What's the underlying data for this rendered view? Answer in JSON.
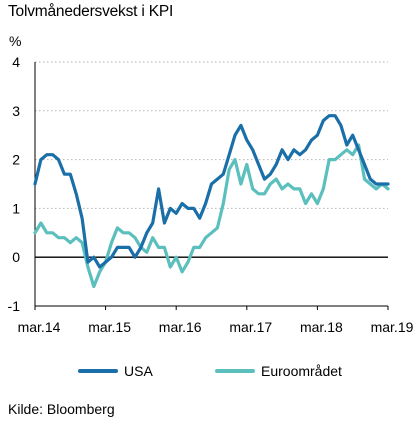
{
  "title": "Tolvmånedersvekst i KPI",
  "source": "Kilde: Bloomberg",
  "chart_data": {
    "type": "line",
    "title": "Tolvmånedersvekst i KPI",
    "ylabel": "%",
    "ylim": [
      -1,
      4
    ],
    "yticks": [
      -1,
      0,
      1,
      2,
      3,
      4
    ],
    "xlim": [
      0,
      60
    ],
    "x_ticks": [
      {
        "label": "mar.14",
        "x": 0
      },
      {
        "label": "mar.15",
        "x": 12
      },
      {
        "label": "mar.16",
        "x": 24
      },
      {
        "label": "mar.17",
        "x": 36
      },
      {
        "label": "mar.18",
        "x": 48
      },
      {
        "label": "mar.19",
        "x": 60
      }
    ],
    "legend": "bottom",
    "series": [
      {
        "name": "USA",
        "color": "#1a6fa8",
        "values": [
          1.5,
          2.0,
          2.1,
          2.1,
          2.0,
          1.7,
          1.7,
          1.3,
          0.8,
          -0.1,
          0.0,
          -0.2,
          -0.1,
          0.0,
          0.2,
          0.2,
          0.2,
          0.0,
          0.2,
          0.5,
          0.7,
          1.4,
          0.7,
          1.0,
          0.9,
          1.1,
          1.0,
          1.0,
          0.8,
          1.1,
          1.5,
          1.6,
          1.7,
          2.1,
          2.5,
          2.7,
          2.4,
          2.2,
          1.9,
          1.6,
          1.7,
          1.9,
          2.2,
          2.0,
          2.2,
          2.1,
          2.2,
          2.4,
          2.5,
          2.8,
          2.9,
          2.9,
          2.7,
          2.3,
          2.5,
          2.2,
          1.9,
          1.6,
          1.5,
          1.5,
          1.5
        ]
      },
      {
        "name": "Euroområdet",
        "color": "#5bbfbd",
        "values": [
          0.5,
          0.7,
          0.5,
          0.5,
          0.4,
          0.4,
          0.3,
          0.4,
          0.3,
          -0.2,
          -0.6,
          -0.3,
          -0.1,
          0.3,
          0.6,
          0.5,
          0.5,
          0.4,
          0.2,
          0.1,
          0.4,
          0.2,
          0.2,
          -0.2,
          0.0,
          -0.3,
          -0.1,
          0.2,
          0.2,
          0.4,
          0.5,
          0.6,
          1.1,
          1.8,
          2.0,
          1.5,
          1.9,
          1.4,
          1.3,
          1.3,
          1.5,
          1.6,
          1.4,
          1.5,
          1.4,
          1.4,
          1.1,
          1.3,
          1.1,
          1.4,
          2.0,
          2.0,
          2.1,
          2.2,
          2.1,
          2.3,
          1.6,
          1.5,
          1.4,
          1.5,
          1.4
        ]
      }
    ]
  }
}
